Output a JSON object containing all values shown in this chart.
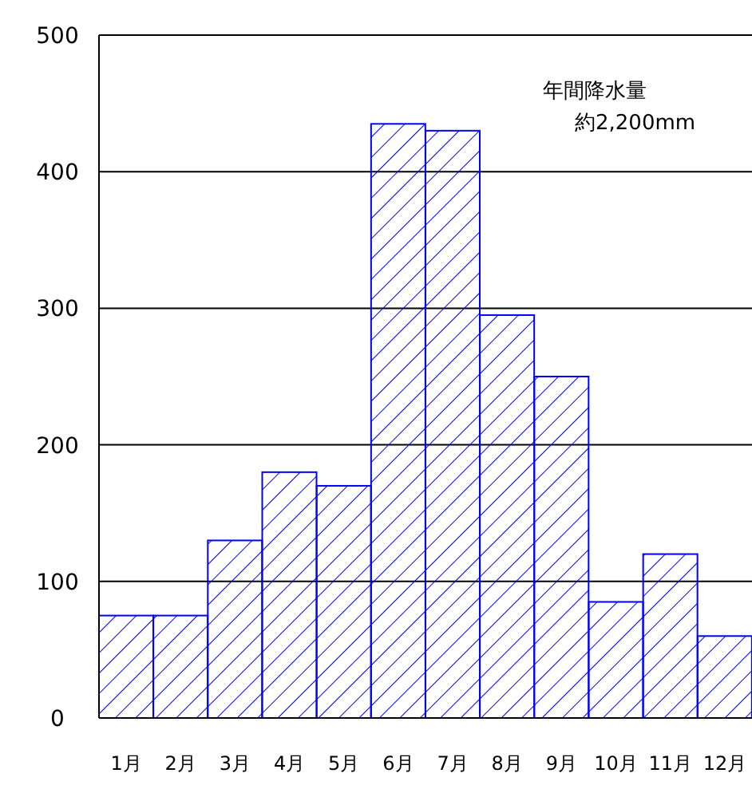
{
  "chart_data": {
    "type": "bar",
    "categories": [
      "1月",
      "2月",
      "3月",
      "4月",
      "5月",
      "6月",
      "7月",
      "8月",
      "9月",
      "10月",
      "11月",
      "12月"
    ],
    "values": [
      75,
      75,
      130,
      180,
      170,
      435,
      430,
      295,
      250,
      85,
      120,
      60
    ],
    "color": "#0000ff",
    "ylim": [
      0,
      500
    ],
    "yticks": [
      0,
      100,
      200,
      300,
      400,
      500
    ],
    "grid": "y",
    "annotations": [
      "年間降水量",
      "約2,200mm"
    ]
  }
}
